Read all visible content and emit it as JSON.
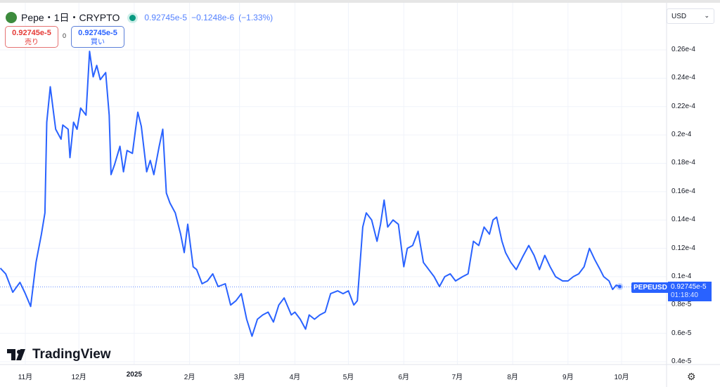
{
  "header": {
    "symbol": "Pepe",
    "interval": "1日",
    "exchange": "CRYPTO",
    "separator": "・",
    "last": "0.92745e-5",
    "change": "−0.1248e-6",
    "change_pct": "(−1.33%)",
    "status_color": "#089981"
  },
  "trade": {
    "sell_price": "0.92745e-5",
    "sell_label": "売り",
    "spread": "0",
    "buy_price": "0.92745e-5",
    "buy_label": "買い"
  },
  "currency": {
    "selected": "USD"
  },
  "price_tag": {
    "symbol": "PEPEUSD",
    "price": "0.92745e-5",
    "countdown": "01:18:40"
  },
  "branding": {
    "name": "TradingView"
  },
  "chart_data": {
    "type": "line",
    "title": "Pepe・1日・CRYPTO",
    "line_color": "#2962ff",
    "ylim": [
      3.8e-06,
      2.75e-05
    ],
    "y_ticks": [
      {
        "v": 2.6e-05,
        "label": "0.26e-4"
      },
      {
        "v": 2.4e-05,
        "label": "0.24e-4"
      },
      {
        "v": 2.2e-05,
        "label": "0.22e-4"
      },
      {
        "v": 2e-05,
        "label": "0.2e-4"
      },
      {
        "v": 1.8e-05,
        "label": "0.18e-4"
      },
      {
        "v": 1.6e-05,
        "label": "0.16e-4"
      },
      {
        "v": 1.4e-05,
        "label": "0.14e-4"
      },
      {
        "v": 1.2e-05,
        "label": "0.12e-4"
      },
      {
        "v": 1e-05,
        "label": "0.1e-4"
      },
      {
        "v": 8e-06,
        "label": "0.8e-5"
      },
      {
        "v": 6e-06,
        "label": "0.6e-5"
      },
      {
        "v": 4e-06,
        "label": "0.4e-5"
      }
    ],
    "x_ticks": [
      {
        "d": "2024-11-01",
        "label": "11月"
      },
      {
        "d": "2024-12-01",
        "label": "12月"
      },
      {
        "d": "2025-01-01",
        "label": "2025",
        "bold": true
      },
      {
        "d": "2025-02-01",
        "label": "2月"
      },
      {
        "d": "2025-03-01",
        "label": "3月"
      },
      {
        "d": "2025-04-01",
        "label": "4月"
      },
      {
        "d": "2025-05-01",
        "label": "5月"
      },
      {
        "d": "2025-06-01",
        "label": "6月"
      },
      {
        "d": "2025-07-01",
        "label": "7月"
      },
      {
        "d": "2025-08-01",
        "label": "8月"
      },
      {
        "d": "2025-09-01",
        "label": "9月"
      },
      {
        "d": "2025-10-01",
        "label": "10月"
      }
    ],
    "current_price": 9.2745e-06,
    "series": [
      {
        "points": [
          [
            "2024-10-18",
            1.06e-05
          ],
          [
            "2024-10-21",
            1.02e-05
          ],
          [
            "2024-10-25",
            8.9e-06
          ],
          [
            "2024-10-29",
            9.6e-06
          ],
          [
            "2024-11-01",
            8.8e-06
          ],
          [
            "2024-11-04",
            7.9e-06
          ],
          [
            "2024-11-07",
            1.1e-05
          ],
          [
            "2024-11-10",
            1.3e-05
          ],
          [
            "2024-11-12",
            1.45e-05
          ],
          [
            "2024-11-13",
            2.09e-05
          ],
          [
            "2024-11-15",
            2.34e-05
          ],
          [
            "2024-11-17",
            2.14e-05
          ],
          [
            "2024-11-18",
            2.04e-05
          ],
          [
            "2024-11-21",
            1.97e-05
          ],
          [
            "2024-11-22",
            2.07e-05
          ],
          [
            "2024-11-25",
            2.04e-05
          ],
          [
            "2024-11-26",
            1.84e-05
          ],
          [
            "2024-11-28",
            2.09e-05
          ],
          [
            "2024-11-30",
            2.04e-05
          ],
          [
            "2024-12-02",
            2.19e-05
          ],
          [
            "2024-12-05",
            2.14e-05
          ],
          [
            "2024-12-07",
            2.59e-05
          ],
          [
            "2024-12-09",
            2.41e-05
          ],
          [
            "2024-12-11",
            2.49e-05
          ],
          [
            "2024-12-13",
            2.39e-05
          ],
          [
            "2024-12-16",
            2.44e-05
          ],
          [
            "2024-12-18",
            2.14e-05
          ],
          [
            "2024-12-19",
            1.72e-05
          ],
          [
            "2024-12-21",
            1.79e-05
          ],
          [
            "2024-12-24",
            1.92e-05
          ],
          [
            "2024-12-26",
            1.74e-05
          ],
          [
            "2024-12-28",
            1.89e-05
          ],
          [
            "2024-12-31",
            1.87e-05
          ],
          [
            "2025-01-03",
            2.16e-05
          ],
          [
            "2025-01-05",
            2.06e-05
          ],
          [
            "2025-01-08",
            1.74e-05
          ],
          [
            "2025-01-10",
            1.82e-05
          ],
          [
            "2025-01-12",
            1.72e-05
          ],
          [
            "2025-01-15",
            1.92e-05
          ],
          [
            "2025-01-17",
            2.04e-05
          ],
          [
            "2025-01-19",
            1.59e-05
          ],
          [
            "2025-01-21",
            1.52e-05
          ],
          [
            "2025-01-24",
            1.45e-05
          ],
          [
            "2025-01-27",
            1.3e-05
          ],
          [
            "2025-01-29",
            1.17e-05
          ],
          [
            "2025-01-31",
            1.37e-05
          ],
          [
            "2025-02-03",
            1.07e-05
          ],
          [
            "2025-02-05",
            1.05e-05
          ],
          [
            "2025-02-08",
            9.5e-06
          ],
          [
            "2025-02-11",
            9.7e-06
          ],
          [
            "2025-02-14",
            1.02e-05
          ],
          [
            "2025-02-17",
            9.3e-06
          ],
          [
            "2025-02-21",
            9.5e-06
          ],
          [
            "2025-02-24",
            8e-06
          ],
          [
            "2025-02-27",
            8.3e-06
          ],
          [
            "2025-03-02",
            8.8e-06
          ],
          [
            "2025-03-05",
            7e-06
          ],
          [
            "2025-03-08",
            5.8e-06
          ],
          [
            "2025-03-11",
            7e-06
          ],
          [
            "2025-03-14",
            7.3e-06
          ],
          [
            "2025-03-17",
            7.5e-06
          ],
          [
            "2025-03-20",
            6.8e-06
          ],
          [
            "2025-03-23",
            8e-06
          ],
          [
            "2025-03-26",
            8.5e-06
          ],
          [
            "2025-03-30",
            7.3e-06
          ],
          [
            "2025-04-01",
            7.5e-06
          ],
          [
            "2025-04-04",
            7e-06
          ],
          [
            "2025-04-07",
            6.3e-06
          ],
          [
            "2025-04-09",
            7.3e-06
          ],
          [
            "2025-04-12",
            7e-06
          ],
          [
            "2025-04-15",
            7.3e-06
          ],
          [
            "2025-04-18",
            7.5e-06
          ],
          [
            "2025-04-21",
            8.8e-06
          ],
          [
            "2025-04-25",
            9e-06
          ],
          [
            "2025-04-28",
            8.8e-06
          ],
          [
            "2025-05-01",
            9e-06
          ],
          [
            "2025-05-04",
            8e-06
          ],
          [
            "2025-05-06",
            8.3e-06
          ],
          [
            "2025-05-09",
            1.35e-05
          ],
          [
            "2025-05-11",
            1.45e-05
          ],
          [
            "2025-05-14",
            1.4e-05
          ],
          [
            "2025-05-17",
            1.25e-05
          ],
          [
            "2025-05-19",
            1.37e-05
          ],
          [
            "2025-05-21",
            1.54e-05
          ],
          [
            "2025-05-23",
            1.35e-05
          ],
          [
            "2025-05-26",
            1.4e-05
          ],
          [
            "2025-05-29",
            1.37e-05
          ],
          [
            "2025-06-01",
            1.07e-05
          ],
          [
            "2025-06-03",
            1.2e-05
          ],
          [
            "2025-06-06",
            1.22e-05
          ],
          [
            "2025-06-09",
            1.32e-05
          ],
          [
            "2025-06-12",
            1.1e-05
          ],
          [
            "2025-06-15",
            1.05e-05
          ],
          [
            "2025-06-18",
            1e-05
          ],
          [
            "2025-06-21",
            9.3e-06
          ],
          [
            "2025-06-24",
            1e-05
          ],
          [
            "2025-06-27",
            1.02e-05
          ],
          [
            "2025-06-30",
            9.7e-06
          ],
          [
            "2025-07-04",
            1e-05
          ],
          [
            "2025-07-07",
            1.02e-05
          ],
          [
            "2025-07-10",
            1.25e-05
          ],
          [
            "2025-07-13",
            1.22e-05
          ],
          [
            "2025-07-16",
            1.35e-05
          ],
          [
            "2025-07-19",
            1.3e-05
          ],
          [
            "2025-07-21",
            1.4e-05
          ],
          [
            "2025-07-23",
            1.42e-05
          ],
          [
            "2025-07-26",
            1.25e-05
          ],
          [
            "2025-07-28",
            1.17e-05
          ],
          [
            "2025-07-31",
            1.1e-05
          ],
          [
            "2025-08-03",
            1.05e-05
          ],
          [
            "2025-08-07",
            1.15e-05
          ],
          [
            "2025-08-10",
            1.22e-05
          ],
          [
            "2025-08-13",
            1.15e-05
          ],
          [
            "2025-08-16",
            1.05e-05
          ],
          [
            "2025-08-19",
            1.15e-05
          ],
          [
            "2025-08-22",
            1.07e-05
          ],
          [
            "2025-08-25",
            1e-05
          ],
          [
            "2025-08-29",
            9.7e-06
          ],
          [
            "2025-09-01",
            9.7e-06
          ],
          [
            "2025-09-04",
            1e-05
          ],
          [
            "2025-09-07",
            1.02e-05
          ],
          [
            "2025-09-10",
            1.07e-05
          ],
          [
            "2025-09-13",
            1.2e-05
          ],
          [
            "2025-09-16",
            1.12e-05
          ],
          [
            "2025-09-19",
            1.05e-05
          ],
          [
            "2025-09-21",
            1e-05
          ],
          [
            "2025-09-24",
            9.7e-06
          ],
          [
            "2025-09-26",
            9.1e-06
          ],
          [
            "2025-09-28",
            9.4e-06
          ],
          [
            "2025-09-30",
            9.3e-06
          ]
        ]
      }
    ]
  }
}
